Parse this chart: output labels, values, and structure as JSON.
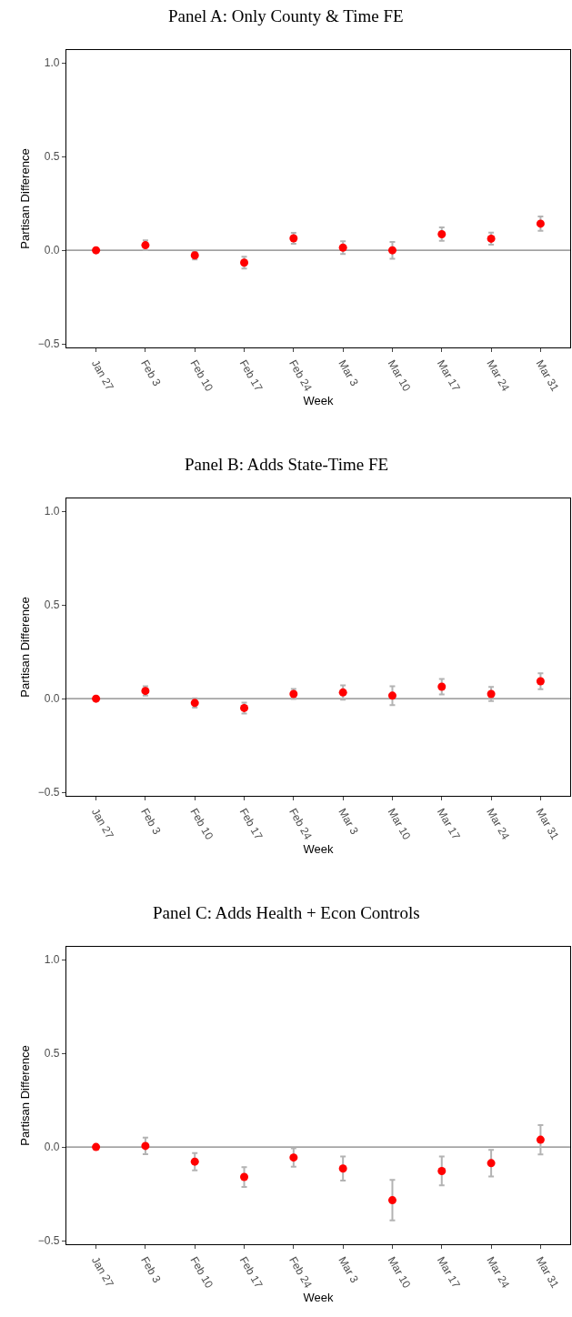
{
  "chart_data": [
    {
      "type": "scatter",
      "title": "Panel A: Only County & Time FE",
      "xlabel": "Week",
      "ylabel": "Partisan Difference",
      "categories": [
        "Jan 27",
        "Feb 3",
        "Feb 10",
        "Feb 17",
        "Feb 24",
        "Mar 3",
        "Mar 10",
        "Mar 17",
        "Mar 24",
        "Mar 31"
      ],
      "color": "#ff0000",
      "marker": "circle",
      "values": [
        0,
        0.027,
        -0.027,
        -0.066,
        0.064,
        0.014,
        0,
        0.086,
        0.062,
        0.142
      ],
      "errors": [
        null,
        0.026,
        0.022,
        0.031,
        0.029,
        0.034,
        0.045,
        0.036,
        0.032,
        0.038
      ],
      "ylim": [
        -0.52,
        1.07
      ],
      "yticks": [
        {
          "value": -0.5,
          "label": "−0.5"
        },
        {
          "value": 0,
          "label": "0.0"
        },
        {
          "value": 0.5,
          "label": "0.5"
        },
        {
          "value": 1,
          "label": "1.0"
        }
      ],
      "grid": false,
      "ref_lines": [
        {
          "axis": "y",
          "value": 0,
          "color": "#808080"
        }
      ]
    },
    {
      "type": "scatter",
      "title": "Panel B: Adds State-Time FE",
      "xlabel": "Week",
      "ylabel": "Partisan Difference",
      "categories": [
        "Jan 27",
        "Feb 3",
        "Feb 10",
        "Feb 17",
        "Feb 24",
        "Mar 3",
        "Mar 10",
        "Mar 17",
        "Mar 24",
        "Mar 31"
      ],
      "color": "#ff0000",
      "marker": "circle",
      "values": [
        0,
        0.041,
        -0.023,
        -0.05,
        0.025,
        0.033,
        0.016,
        0.064,
        0.025,
        0.093
      ],
      "errors": [
        null,
        0.025,
        0.025,
        0.029,
        0.027,
        0.038,
        0.05,
        0.041,
        0.038,
        0.042
      ],
      "ylim": [
        -0.52,
        1.07
      ],
      "yticks": [
        {
          "value": -0.5,
          "label": "−0.5"
        },
        {
          "value": 0,
          "label": "0.0"
        },
        {
          "value": 0.5,
          "label": "0.5"
        },
        {
          "value": 1,
          "label": "1.0"
        }
      ],
      "grid": false,
      "ref_lines": [
        {
          "axis": "y",
          "value": 0,
          "color": "#808080"
        }
      ]
    },
    {
      "type": "scatter",
      "title": "Panel C: Adds Health + Econ Controls",
      "xlabel": "Week",
      "ylabel": "Partisan Difference",
      "categories": [
        "Jan 27",
        "Feb 3",
        "Feb 10",
        "Feb 17",
        "Feb 24",
        "Mar 3",
        "Mar 10",
        "Mar 17",
        "Mar 24",
        "Mar 31"
      ],
      "color": "#ff0000",
      "marker": "circle",
      "values": [
        0,
        0.006,
        -0.078,
        -0.16,
        -0.056,
        -0.115,
        -0.284,
        -0.128,
        -0.086,
        0.039
      ],
      "errors": [
        null,
        0.044,
        0.046,
        0.053,
        0.049,
        0.064,
        0.108,
        0.077,
        0.071,
        0.078
      ],
      "ylim": [
        -0.52,
        1.07
      ],
      "yticks": [
        {
          "value": -0.5,
          "label": "−0.5"
        },
        {
          "value": 0,
          "label": "0.0"
        },
        {
          "value": 0.5,
          "label": "0.5"
        },
        {
          "value": 1,
          "label": "1.0"
        }
      ],
      "grid": false,
      "ref_lines": [
        {
          "axis": "y",
          "value": 0,
          "color": "#808080"
        }
      ]
    }
  ]
}
